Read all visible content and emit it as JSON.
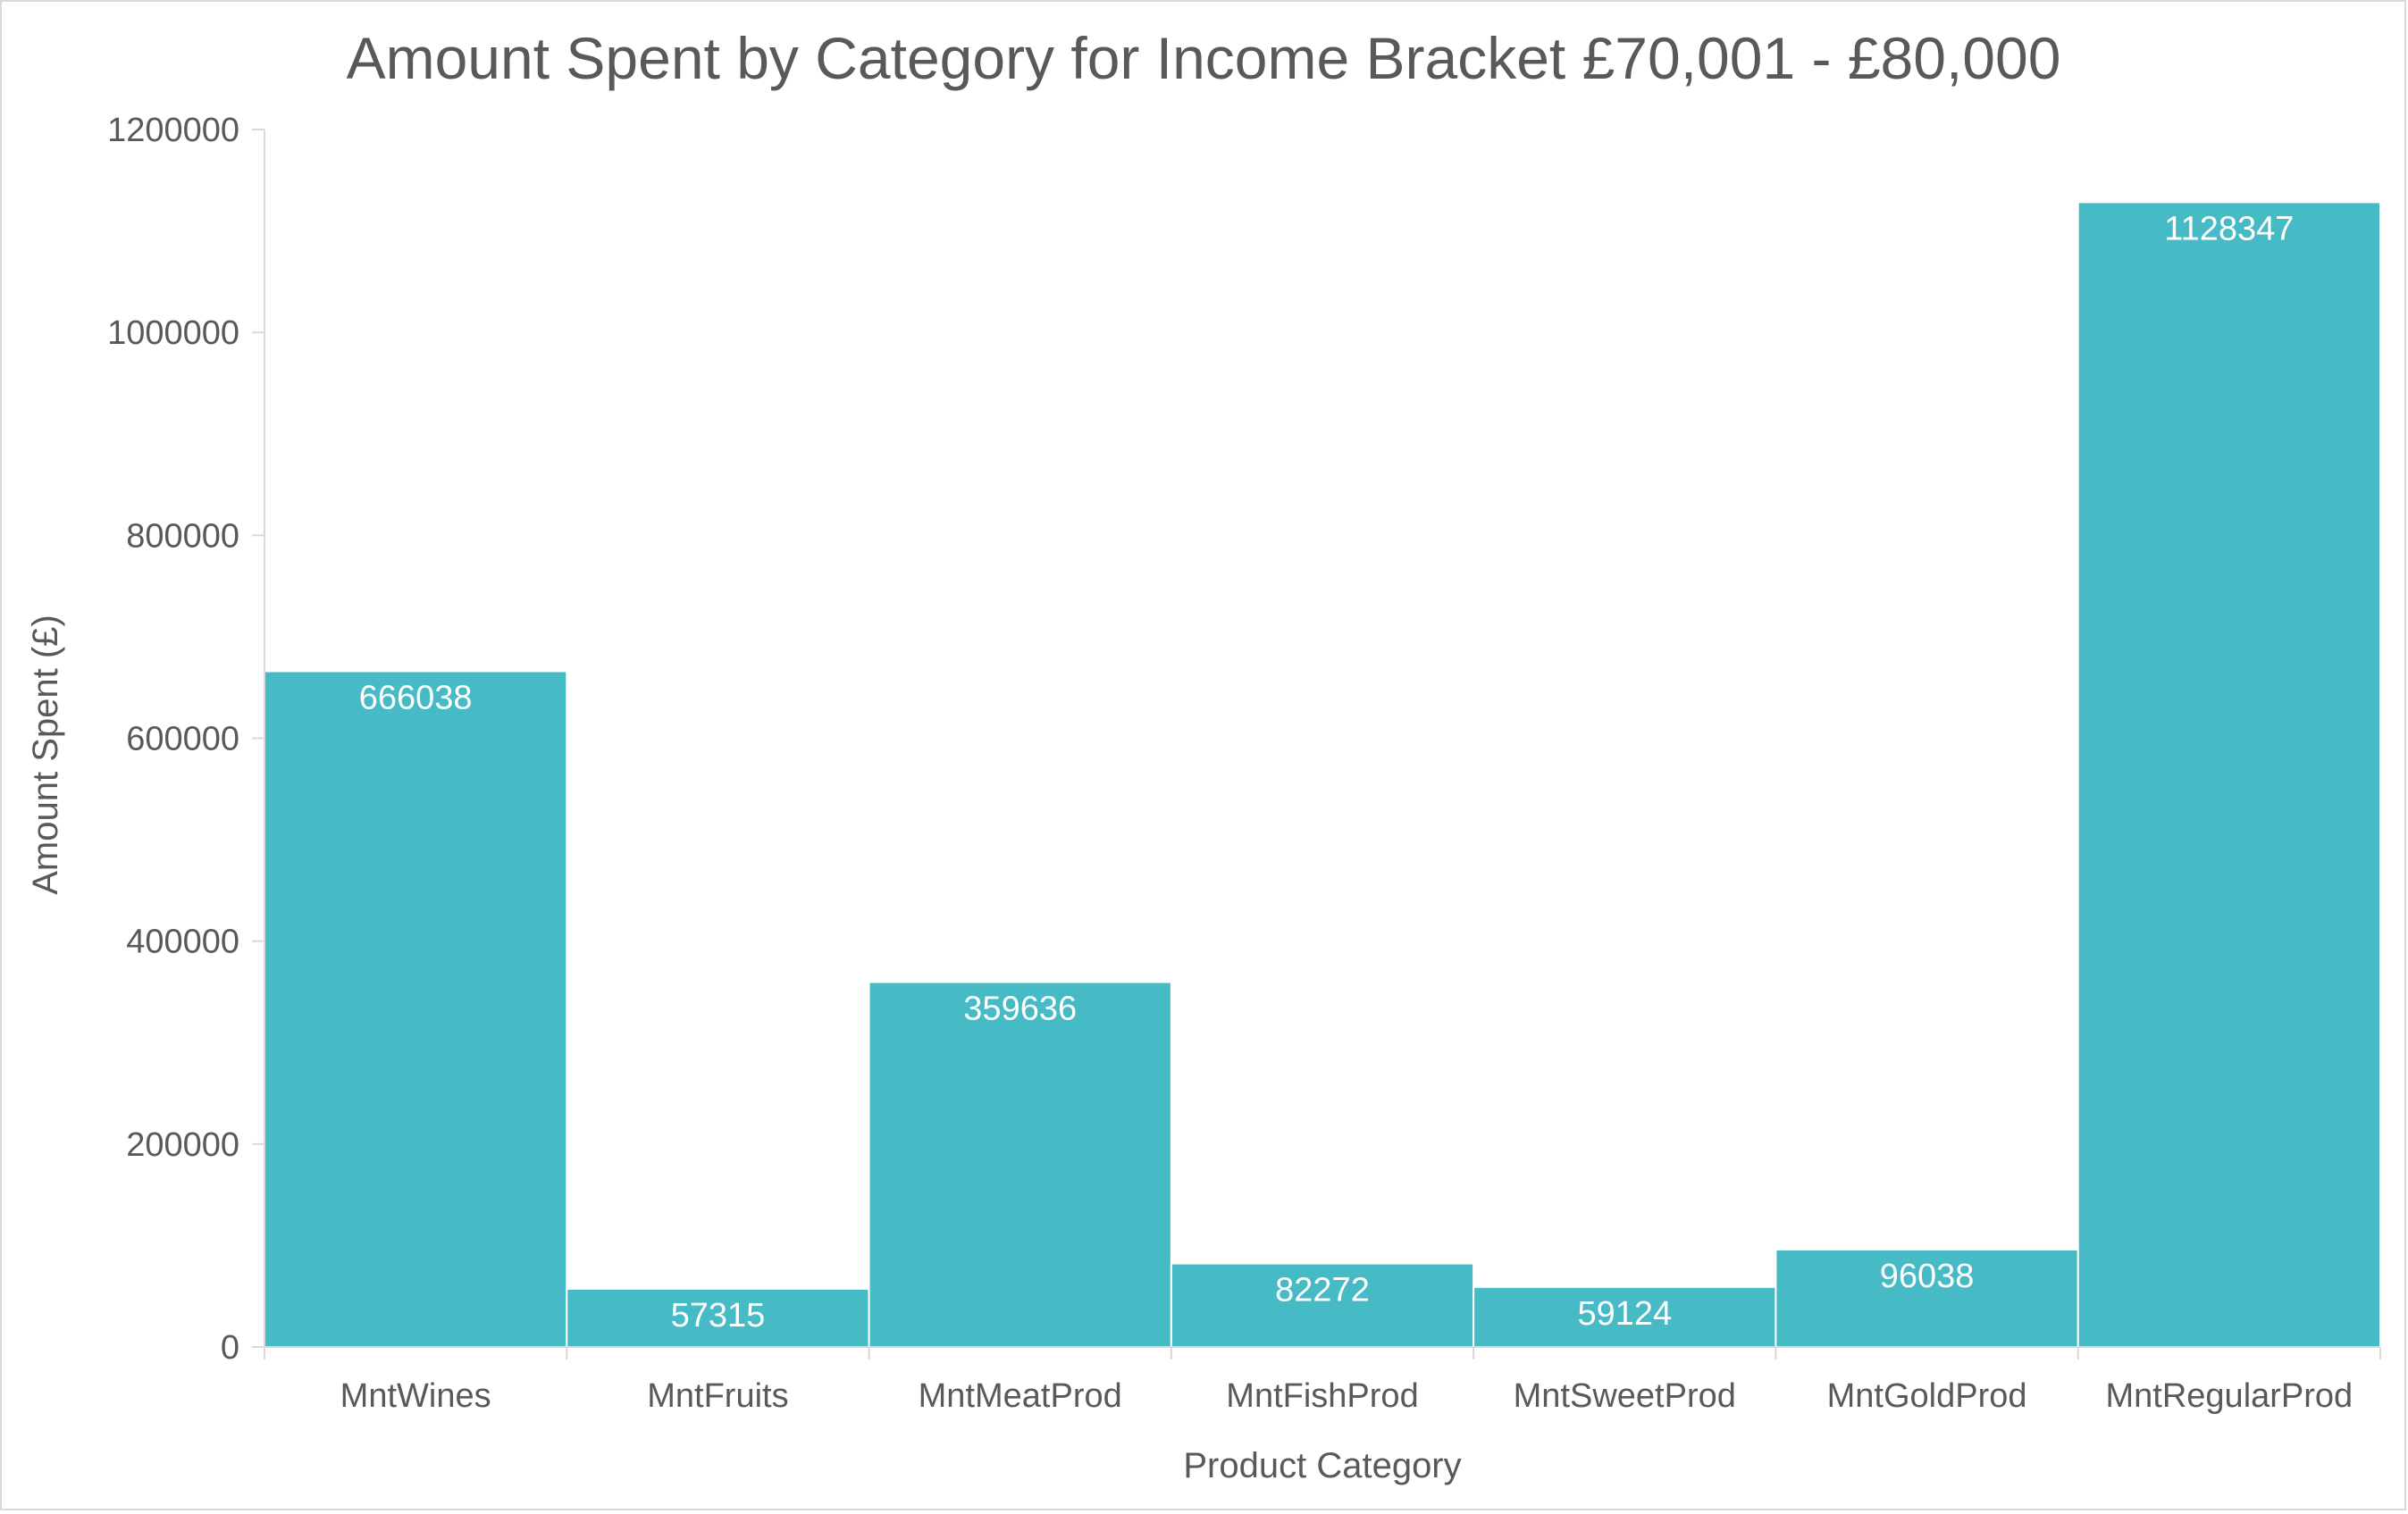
{
  "chart_data": {
    "type": "bar",
    "title": "Amount Spent by Category for Income Bracket £70,001 - £80,000",
    "xlabel": "Product Category",
    "ylabel": "Amount Spent (£)",
    "categories": [
      "MntWines",
      "MntFruits",
      "MntMeatProd",
      "MntFishProd",
      "MntSweetProd",
      "MntGoldProd",
      "MntRegularProd"
    ],
    "values": [
      666038,
      57315,
      359636,
      82272,
      59124,
      96038,
      1128347
    ],
    "data_labels": [
      "666038",
      "57315",
      "359636",
      "82272",
      "59124",
      "96038",
      "1128347"
    ],
    "ylim": [
      0,
      1200000
    ],
    "yticks": [
      "0",
      "200000",
      "400000",
      "600000",
      "800000",
      "1000000",
      "1200000"
    ],
    "grid": false,
    "legend": "none",
    "colors": {
      "bar": "#47bbc5",
      "bar_edge": "#ffffff",
      "axis": "#d9d9d9",
      "text": "#595959",
      "data_label": "#ffffff"
    }
  }
}
